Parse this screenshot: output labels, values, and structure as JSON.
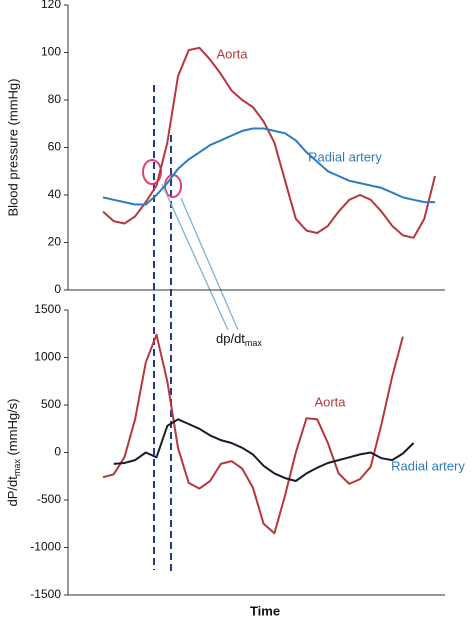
{
  "chart_data": [
    {
      "type": "line",
      "ylabel": "Blood pressure (mmHg)",
      "ylim": [
        0,
        120
      ],
      "yticks": [
        0,
        20,
        40,
        60,
        80,
        100,
        120
      ],
      "series": [
        {
          "name": "Aorta",
          "color": "#b5383d",
          "values": [
            33,
            29,
            28,
            31,
            37,
            44,
            62,
            90,
            101,
            102,
            97,
            91,
            84,
            80,
            77,
            71,
            62,
            46,
            30,
            25,
            24,
            27,
            33,
            38,
            40,
            38,
            33,
            27,
            23,
            22,
            30,
            48
          ]
        },
        {
          "name": "Radial artery",
          "color": "#2f7bc0",
          "values": [
            39,
            38,
            37,
            36,
            36,
            40,
            45,
            51,
            55,
            58,
            61,
            63,
            65,
            67,
            68,
            68,
            67,
            66,
            63,
            58,
            54,
            50,
            48,
            46,
            45,
            44,
            43,
            41,
            39,
            38,
            37,
            37
          ]
        }
      ],
      "annotation": {
        "text": "dp/dt",
        "sub": "max"
      }
    },
    {
      "type": "line",
      "ylabel": [
        "dP/dt",
        "max",
        " (mmHg/s)"
      ],
      "xlabel": "Time",
      "ylim": [
        -1500,
        1500
      ],
      "yticks": [
        -1500,
        -1000,
        -500,
        0,
        500,
        1000,
        1500
      ],
      "series": [
        {
          "name": "Aorta",
          "color": "#b5383d",
          "values": [
            -260,
            -230,
            -50,
            350,
            950,
            1240,
            750,
            50,
            -320,
            -380,
            -300,
            -120,
            -90,
            -170,
            -370,
            -750,
            -850,
            -450,
            0,
            360,
            350,
            100,
            -220,
            -330,
            -280,
            -150,
            300,
            800,
            1220,
            null,
            null,
            null
          ]
        },
        {
          "name": "Radial artery",
          "color": "#1a1a2e",
          "values": [
            null,
            -120,
            -110,
            -80,
            0,
            -50,
            280,
            350,
            300,
            250,
            180,
            130,
            100,
            50,
            -20,
            -140,
            -220,
            -270,
            -300,
            -220,
            -160,
            -110,
            -80,
            -50,
            -20,
            0,
            -60,
            -80,
            -10,
            100,
            null,
            null
          ]
        }
      ]
    }
  ]
}
